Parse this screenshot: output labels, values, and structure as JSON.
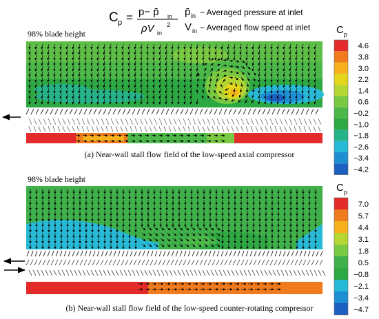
{
  "formula": {
    "lhs": "C",
    "lhs_sub": "p",
    "equals": "=",
    "numerator": "p− p̄",
    "numerator_sub": "in",
    "denominator_rho": "ρV",
    "denominator_sub": "in",
    "denominator_sup": "2",
    "def1_symbol": "p̄",
    "def1_sub": "in",
    "def1_text": "− Averaged pressure at inlet",
    "def2_symbol": "V",
    "def2_sub": "in",
    "def2_text": "− Averaged flow speed at inlet"
  },
  "panel_a": {
    "blade_height_label": "98% blade height",
    "caption": "(a) Near-wall stall flow field of the low-speed axial compressor",
    "colorbar_title": "C",
    "colorbar_title_sub": "p",
    "colorbar_ticks": [
      "4.6",
      "3.8",
      "3.0",
      "2.2",
      "1.4",
      "0.6",
      "−0.2",
      "−1.0",
      "−1.8",
      "−2.6",
      "−3.4",
      "−4.2"
    ],
    "colors": [
      "#e32b2b",
      "#f07a1e",
      "#f6b11c",
      "#e4d61c",
      "#b5d633",
      "#7ac943",
      "#4cb84a",
      "#2ea843",
      "#27b38a",
      "#27b9d6",
      "#1f8fd4",
      "#1d5fc0"
    ]
  },
  "panel_b": {
    "blade_height_label": "98% blade height",
    "caption": "(b) Near-wall stall flow field of the low-speed counter-rotating compressor",
    "colorbar_title": "C",
    "colorbar_title_sub": "p",
    "colorbar_ticks": [
      "7.0",
      "5.7",
      "4.4",
      "3.1",
      "1.8",
      "0.5",
      "−0.8",
      "−2.1",
      "−3.4",
      "−4.7"
    ],
    "colors": [
      "#e32b2b",
      "#f07a1e",
      "#f6b11c",
      "#b5d633",
      "#7ac943",
      "#3fb04a",
      "#2ea843",
      "#27b9d6",
      "#1f8fd4",
      "#1d5fc0"
    ]
  }
}
